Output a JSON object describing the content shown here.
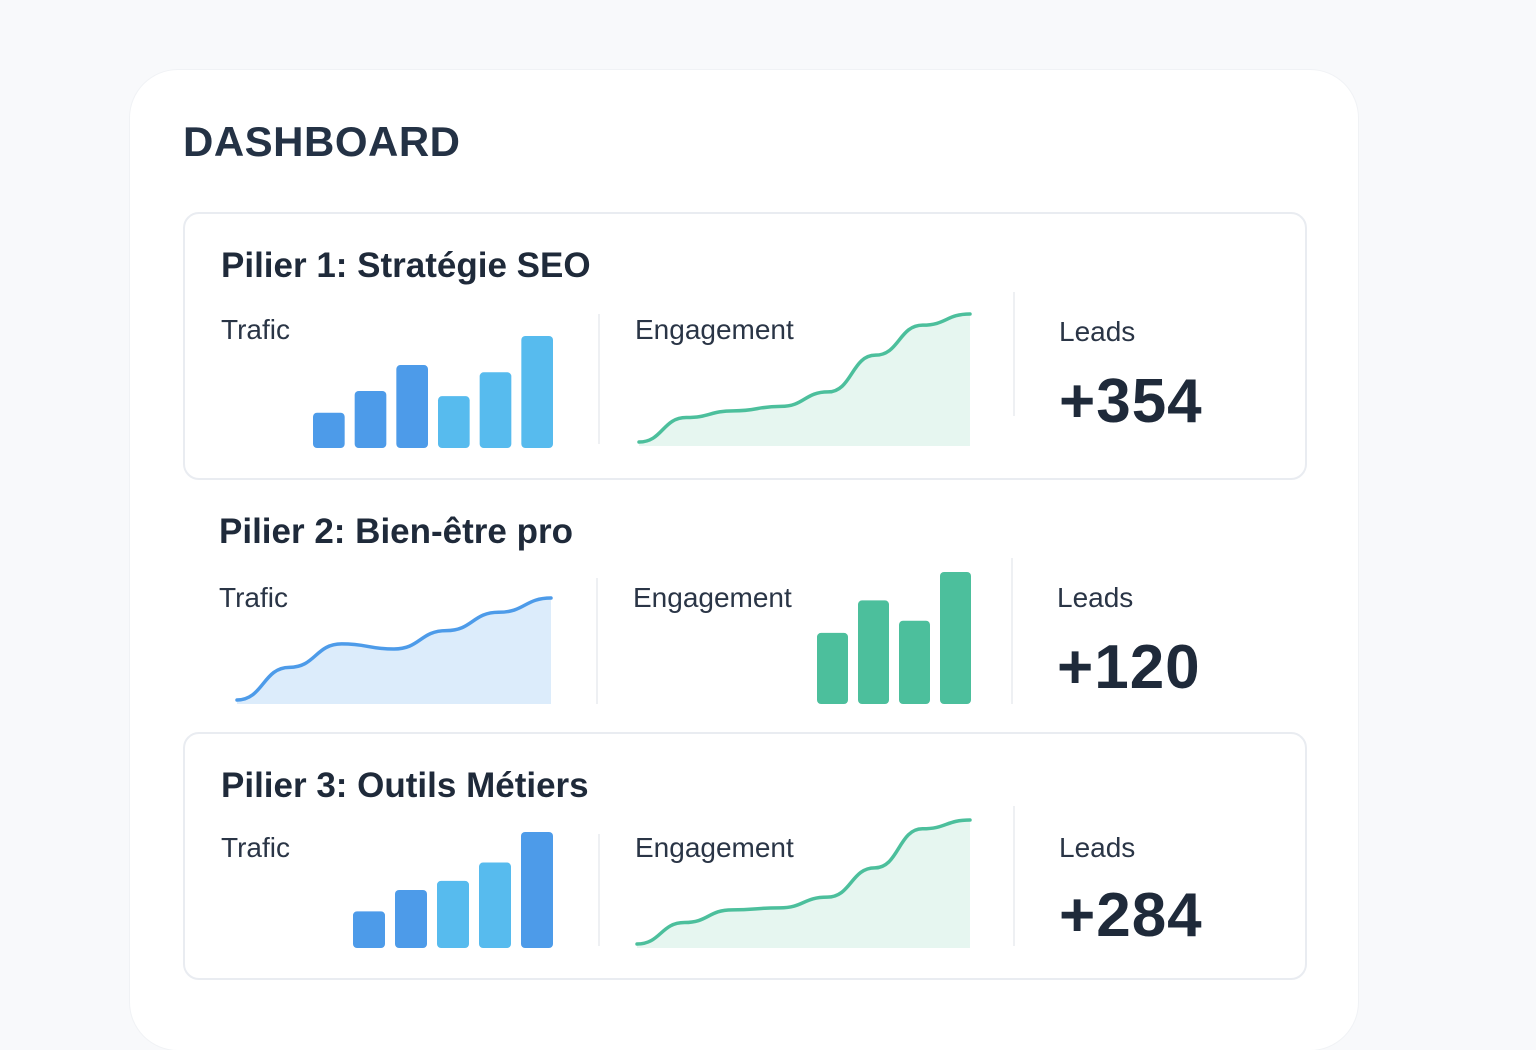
{
  "dashboard": {
    "title": "DASHBOARD"
  },
  "colors": {
    "blue_dark": "#4d9be9",
    "blue_light": "#57bbee",
    "green": "#4cbf9c",
    "green_fill": "#e6f6f0",
    "blue_fill": "#dcecfb"
  },
  "pillars": [
    {
      "title": "Pilier 1: Stratégie SEO",
      "trafic": {
        "label": "Trafic",
        "type": "bar",
        "values": [
          34,
          55,
          80,
          50,
          73,
          108
        ]
      },
      "engagement": {
        "label": "Engagement",
        "type": "area",
        "values": [
          0,
          22,
          28,
          32,
          45,
          78,
          105,
          115
        ]
      },
      "leads": {
        "label": "Leads",
        "value": "+354"
      }
    },
    {
      "title": "Pilier 2: Bien-être pro",
      "trafic": {
        "label": "Trafic",
        "type": "area",
        "values": [
          0,
          32,
          55,
          50,
          68,
          86,
          100
        ]
      },
      "engagement": {
        "label": "Engagement",
        "type": "bar",
        "values": [
          70,
          102,
          82,
          130
        ]
      },
      "leads": {
        "label": "Leads",
        "value": "+120"
      }
    },
    {
      "title": "Pilier 3: Outils Métiers",
      "trafic": {
        "label": "Trafic",
        "type": "bar",
        "values": [
          36,
          57,
          66,
          84,
          114
        ]
      },
      "engagement": {
        "label": "Engagement",
        "type": "area",
        "values": [
          0,
          22,
          35,
          37,
          48,
          78,
          118,
          127
        ]
      },
      "leads": {
        "label": "Leads",
        "value": "+284"
      }
    }
  ]
}
